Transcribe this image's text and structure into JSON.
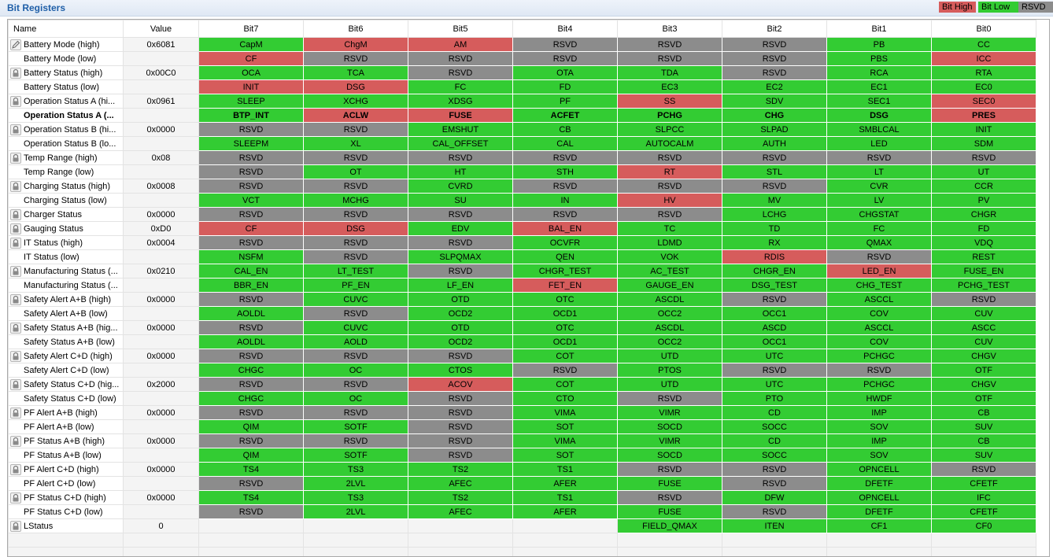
{
  "header": {
    "title": "Bit Registers"
  },
  "legend": {
    "high": "Bit High",
    "low": "Bit Low",
    "rsvd": "RSVD"
  },
  "colors": {
    "high": "#d65c5c",
    "low": "#33cc33",
    "rsvd": "#8c8c8c",
    "title": "#1f5fa8"
  },
  "columns": [
    "Name",
    "Value",
    "Bit7",
    "Bit6",
    "Bit5",
    "Bit4",
    "Bit3",
    "Bit2",
    "Bit1",
    "Bit0"
  ],
  "rows": [
    {
      "name": "Battery Mode (high)",
      "value": "0x6081",
      "icon": "edit-icon",
      "bits": [
        [
          "CapM",
          "lo"
        ],
        [
          "ChgM",
          "hi"
        ],
        [
          "AM",
          "hi"
        ],
        [
          "RSVD",
          "rsvd"
        ],
        [
          "RSVD",
          "rsvd"
        ],
        [
          "RSVD",
          "rsvd"
        ],
        [
          "PB",
          "lo"
        ],
        [
          "CC",
          "lo"
        ]
      ]
    },
    {
      "name": "Battery Mode (low)",
      "value": "",
      "icon": "",
      "bits": [
        [
          "CF",
          "hi"
        ],
        [
          "RSVD",
          "rsvd"
        ],
        [
          "RSVD",
          "rsvd"
        ],
        [
          "RSVD",
          "rsvd"
        ],
        [
          "RSVD",
          "rsvd"
        ],
        [
          "RSVD",
          "rsvd"
        ],
        [
          "PBS",
          "lo"
        ],
        [
          "ICC",
          "hi"
        ]
      ]
    },
    {
      "name": "Battery Status (high)",
      "value": "0x00C0",
      "icon": "lock-icon",
      "bits": [
        [
          "OCA",
          "lo"
        ],
        [
          "TCA",
          "lo"
        ],
        [
          "RSVD",
          "rsvd"
        ],
        [
          "OTA",
          "lo"
        ],
        [
          "TDA",
          "lo"
        ],
        [
          "RSVD",
          "rsvd"
        ],
        [
          "RCA",
          "lo"
        ],
        [
          "RTA",
          "lo"
        ]
      ]
    },
    {
      "name": "Battery Status (low)",
      "value": "",
      "icon": "",
      "bits": [
        [
          "INIT",
          "hi"
        ],
        [
          "DSG",
          "hi"
        ],
        [
          "FC",
          "lo"
        ],
        [
          "FD",
          "lo"
        ],
        [
          "EC3",
          "lo"
        ],
        [
          "EC2",
          "lo"
        ],
        [
          "EC1",
          "lo"
        ],
        [
          "EC0",
          "lo"
        ]
      ]
    },
    {
      "name": "Operation Status A (hi...",
      "value": "0x0961",
      "icon": "lock-icon",
      "bits": [
        [
          "SLEEP",
          "lo"
        ],
        [
          "XCHG",
          "lo"
        ],
        [
          "XDSG",
          "lo"
        ],
        [
          "PF",
          "lo"
        ],
        [
          "SS",
          "hi"
        ],
        [
          "SDV",
          "lo"
        ],
        [
          "SEC1",
          "lo"
        ],
        [
          "SEC0",
          "hi"
        ]
      ]
    },
    {
      "name": "Operation Status A (...",
      "value": "",
      "icon": "",
      "bold": true,
      "bits": [
        [
          "BTP_INT",
          "lo"
        ],
        [
          "ACLW",
          "hi"
        ],
        [
          "FUSE",
          "hi"
        ],
        [
          "ACFET",
          "lo"
        ],
        [
          "PCHG",
          "lo"
        ],
        [
          "CHG",
          "lo"
        ],
        [
          "DSG",
          "lo"
        ],
        [
          "PRES",
          "hi"
        ]
      ]
    },
    {
      "name": "Operation Status B (hi...",
      "value": "0x0000",
      "icon": "lock-icon",
      "bits": [
        [
          "RSVD",
          "rsvd"
        ],
        [
          "RSVD",
          "rsvd"
        ],
        [
          "EMSHUT",
          "lo"
        ],
        [
          "CB",
          "lo"
        ],
        [
          "SLPCC",
          "lo"
        ],
        [
          "SLPAD",
          "lo"
        ],
        [
          "SMBLCAL",
          "lo"
        ],
        [
          "INIT",
          "lo"
        ]
      ]
    },
    {
      "name": "Operation Status B (lo...",
      "value": "",
      "icon": "",
      "bits": [
        [
          "SLEEPM",
          "lo"
        ],
        [
          "XL",
          "lo"
        ],
        [
          "CAL_OFFSET",
          "lo"
        ],
        [
          "CAL",
          "lo"
        ],
        [
          "AUTOCALM",
          "lo"
        ],
        [
          "AUTH",
          "lo"
        ],
        [
          "LED",
          "lo"
        ],
        [
          "SDM",
          "lo"
        ]
      ]
    },
    {
      "name": "Temp Range (high)",
      "value": "0x08",
      "icon": "lock-icon",
      "bits": [
        [
          "RSVD",
          "rsvd"
        ],
        [
          "RSVD",
          "rsvd"
        ],
        [
          "RSVD",
          "rsvd"
        ],
        [
          "RSVD",
          "rsvd"
        ],
        [
          "RSVD",
          "rsvd"
        ],
        [
          "RSVD",
          "rsvd"
        ],
        [
          "RSVD",
          "rsvd"
        ],
        [
          "RSVD",
          "rsvd"
        ]
      ]
    },
    {
      "name": "Temp Range (low)",
      "value": "",
      "icon": "",
      "bits": [
        [
          "RSVD",
          "rsvd"
        ],
        [
          "OT",
          "lo"
        ],
        [
          "HT",
          "lo"
        ],
        [
          "STH",
          "lo"
        ],
        [
          "RT",
          "hi"
        ],
        [
          "STL",
          "lo"
        ],
        [
          "LT",
          "lo"
        ],
        [
          "UT",
          "lo"
        ]
      ]
    },
    {
      "name": "Charging Status (high)",
      "value": "0x0008",
      "icon": "lock-icon",
      "bits": [
        [
          "RSVD",
          "rsvd"
        ],
        [
          "RSVD",
          "rsvd"
        ],
        [
          "CVRD",
          "lo"
        ],
        [
          "RSVD",
          "rsvd"
        ],
        [
          "RSVD",
          "rsvd"
        ],
        [
          "RSVD",
          "rsvd"
        ],
        [
          "CVR",
          "lo"
        ],
        [
          "CCR",
          "lo"
        ]
      ]
    },
    {
      "name": "Charging Status (low)",
      "value": "",
      "icon": "",
      "bits": [
        [
          "VCT",
          "lo"
        ],
        [
          "MCHG",
          "lo"
        ],
        [
          "SU",
          "lo"
        ],
        [
          "IN",
          "lo"
        ],
        [
          "HV",
          "hi"
        ],
        [
          "MV",
          "lo"
        ],
        [
          "LV",
          "lo"
        ],
        [
          "PV",
          "lo"
        ]
      ]
    },
    {
      "name": "Charger Status",
      "value": "0x0000",
      "icon": "lock-icon",
      "bits": [
        [
          "RSVD",
          "rsvd"
        ],
        [
          "RSVD",
          "rsvd"
        ],
        [
          "RSVD",
          "rsvd"
        ],
        [
          "RSVD",
          "rsvd"
        ],
        [
          "RSVD",
          "rsvd"
        ],
        [
          "LCHG",
          "lo"
        ],
        [
          "CHGSTAT",
          "lo"
        ],
        [
          "CHGR",
          "lo"
        ]
      ]
    },
    {
      "name": "Gauging Status",
      "value": "0xD0",
      "icon": "lock-icon",
      "bits": [
        [
          "CF",
          "hi"
        ],
        [
          "DSG",
          "hi"
        ],
        [
          "EDV",
          "lo"
        ],
        [
          "BAL_EN",
          "hi"
        ],
        [
          "TC",
          "lo"
        ],
        [
          "TD",
          "lo"
        ],
        [
          "FC",
          "lo"
        ],
        [
          "FD",
          "lo"
        ]
      ]
    },
    {
      "name": "IT Status (high)",
      "value": "0x0004",
      "icon": "lock-icon",
      "bits": [
        [
          "RSVD",
          "rsvd"
        ],
        [
          "RSVD",
          "rsvd"
        ],
        [
          "RSVD",
          "rsvd"
        ],
        [
          "OCVFR",
          "lo"
        ],
        [
          "LDMD",
          "lo"
        ],
        [
          "RX",
          "lo"
        ],
        [
          "QMAX",
          "lo"
        ],
        [
          "VDQ",
          "lo"
        ]
      ]
    },
    {
      "name": "IT Status (low)",
      "value": "",
      "icon": "",
      "bits": [
        [
          "NSFM",
          "lo"
        ],
        [
          "RSVD",
          "rsvd"
        ],
        [
          "SLPQMAX",
          "lo"
        ],
        [
          "QEN",
          "lo"
        ],
        [
          "VOK",
          "lo"
        ],
        [
          "RDIS",
          "hi"
        ],
        [
          "RSVD",
          "rsvd"
        ],
        [
          "REST",
          "lo"
        ]
      ]
    },
    {
      "name": "Manufacturing Status (...",
      "value": "0x0210",
      "icon": "lock-icon",
      "bits": [
        [
          "CAL_EN",
          "lo"
        ],
        [
          "LT_TEST",
          "lo"
        ],
        [
          "RSVD",
          "rsvd"
        ],
        [
          "CHGR_TEST",
          "lo"
        ],
        [
          "AC_TEST",
          "lo"
        ],
        [
          "CHGR_EN",
          "lo"
        ],
        [
          "LED_EN",
          "hi"
        ],
        [
          "FUSE_EN",
          "lo"
        ]
      ]
    },
    {
      "name": "Manufacturing Status (...",
      "value": "",
      "icon": "",
      "bits": [
        [
          "BBR_EN",
          "lo"
        ],
        [
          "PF_EN",
          "lo"
        ],
        [
          "LF_EN",
          "lo"
        ],
        [
          "FET_EN",
          "hi"
        ],
        [
          "GAUGE_EN",
          "lo"
        ],
        [
          "DSG_TEST",
          "lo"
        ],
        [
          "CHG_TEST",
          "lo"
        ],
        [
          "PCHG_TEST",
          "lo"
        ]
      ]
    },
    {
      "name": "Safety Alert A+B (high)",
      "value": "0x0000",
      "icon": "lock-icon",
      "bits": [
        [
          "RSVD",
          "rsvd"
        ],
        [
          "CUVC",
          "lo"
        ],
        [
          "OTD",
          "lo"
        ],
        [
          "OTC",
          "lo"
        ],
        [
          "ASCDL",
          "lo"
        ],
        [
          "RSVD",
          "rsvd"
        ],
        [
          "ASCCL",
          "lo"
        ],
        [
          "RSVD",
          "rsvd"
        ]
      ]
    },
    {
      "name": "Safety Alert A+B (low)",
      "value": "",
      "icon": "",
      "bits": [
        [
          "AOLDL",
          "lo"
        ],
        [
          "RSVD",
          "rsvd"
        ],
        [
          "OCD2",
          "lo"
        ],
        [
          "OCD1",
          "lo"
        ],
        [
          "OCC2",
          "lo"
        ],
        [
          "OCC1",
          "lo"
        ],
        [
          "COV",
          "lo"
        ],
        [
          "CUV",
          "lo"
        ]
      ]
    },
    {
      "name": "Safety Status A+B (hig...",
      "value": "0x0000",
      "icon": "lock-icon",
      "bits": [
        [
          "RSVD",
          "rsvd"
        ],
        [
          "CUVC",
          "lo"
        ],
        [
          "OTD",
          "lo"
        ],
        [
          "OTC",
          "lo"
        ],
        [
          "ASCDL",
          "lo"
        ],
        [
          "ASCD",
          "lo"
        ],
        [
          "ASCCL",
          "lo"
        ],
        [
          "ASCC",
          "lo"
        ]
      ]
    },
    {
      "name": "Safety Status A+B (low)",
      "value": "",
      "icon": "",
      "bits": [
        [
          "AOLDL",
          "lo"
        ],
        [
          "AOLD",
          "lo"
        ],
        [
          "OCD2",
          "lo"
        ],
        [
          "OCD1",
          "lo"
        ],
        [
          "OCC2",
          "lo"
        ],
        [
          "OCC1",
          "lo"
        ],
        [
          "COV",
          "lo"
        ],
        [
          "CUV",
          "lo"
        ]
      ]
    },
    {
      "name": "Safety Alert C+D (high)",
      "value": "0x0000",
      "icon": "lock-icon",
      "bits": [
        [
          "RSVD",
          "rsvd"
        ],
        [
          "RSVD",
          "rsvd"
        ],
        [
          "RSVD",
          "rsvd"
        ],
        [
          "COT",
          "lo"
        ],
        [
          "UTD",
          "lo"
        ],
        [
          "UTC",
          "lo"
        ],
        [
          "PCHGC",
          "lo"
        ],
        [
          "CHGV",
          "lo"
        ]
      ]
    },
    {
      "name": "Safety Alert C+D (low)",
      "value": "",
      "icon": "",
      "bits": [
        [
          "CHGC",
          "lo"
        ],
        [
          "OC",
          "lo"
        ],
        [
          "CTOS",
          "lo"
        ],
        [
          "RSVD",
          "rsvd"
        ],
        [
          "PTOS",
          "lo"
        ],
        [
          "RSVD",
          "rsvd"
        ],
        [
          "RSVD",
          "rsvd"
        ],
        [
          "OTF",
          "lo"
        ]
      ]
    },
    {
      "name": "Safety Status C+D (hig...",
      "value": "0x2000",
      "icon": "lock-icon",
      "bits": [
        [
          "RSVD",
          "rsvd"
        ],
        [
          "RSVD",
          "rsvd"
        ],
        [
          "ACOV",
          "hi"
        ],
        [
          "COT",
          "lo"
        ],
        [
          "UTD",
          "lo"
        ],
        [
          "UTC",
          "lo"
        ],
        [
          "PCHGC",
          "lo"
        ],
        [
          "CHGV",
          "lo"
        ]
      ]
    },
    {
      "name": "Safety Status C+D (low)",
      "value": "",
      "icon": "",
      "bits": [
        [
          "CHGC",
          "lo"
        ],
        [
          "OC",
          "lo"
        ],
        [
          "RSVD",
          "rsvd"
        ],
        [
          "CTO",
          "lo"
        ],
        [
          "RSVD",
          "rsvd"
        ],
        [
          "PTO",
          "lo"
        ],
        [
          "HWDF",
          "lo"
        ],
        [
          "OTF",
          "lo"
        ]
      ]
    },
    {
      "name": "PF Alert A+B (high)",
      "value": "0x0000",
      "icon": "lock-icon",
      "bits": [
        [
          "RSVD",
          "rsvd"
        ],
        [
          "RSVD",
          "rsvd"
        ],
        [
          "RSVD",
          "rsvd"
        ],
        [
          "VIMA",
          "lo"
        ],
        [
          "VIMR",
          "lo"
        ],
        [
          "CD",
          "lo"
        ],
        [
          "IMP",
          "lo"
        ],
        [
          "CB",
          "lo"
        ]
      ]
    },
    {
      "name": "PF Alert A+B (low)",
      "value": "",
      "icon": "",
      "bits": [
        [
          "QIM",
          "lo"
        ],
        [
          "SOTF",
          "lo"
        ],
        [
          "RSVD",
          "rsvd"
        ],
        [
          "SOT",
          "lo"
        ],
        [
          "SOCD",
          "lo"
        ],
        [
          "SOCC",
          "lo"
        ],
        [
          "SOV",
          "lo"
        ],
        [
          "SUV",
          "lo"
        ]
      ]
    },
    {
      "name": "PF Status A+B (high)",
      "value": "0x0000",
      "icon": "lock-icon",
      "bits": [
        [
          "RSVD",
          "rsvd"
        ],
        [
          "RSVD",
          "rsvd"
        ],
        [
          "RSVD",
          "rsvd"
        ],
        [
          "VIMA",
          "lo"
        ],
        [
          "VIMR",
          "lo"
        ],
        [
          "CD",
          "lo"
        ],
        [
          "IMP",
          "lo"
        ],
        [
          "CB",
          "lo"
        ]
      ]
    },
    {
      "name": "PF Status A+B (low)",
      "value": "",
      "icon": "",
      "bits": [
        [
          "QIM",
          "lo"
        ],
        [
          "SOTF",
          "lo"
        ],
        [
          "RSVD",
          "rsvd"
        ],
        [
          "SOT",
          "lo"
        ],
        [
          "SOCD",
          "lo"
        ],
        [
          "SOCC",
          "lo"
        ],
        [
          "SOV",
          "lo"
        ],
        [
          "SUV",
          "lo"
        ]
      ]
    },
    {
      "name": "PF Alert C+D (high)",
      "value": "0x0000",
      "icon": "lock-icon",
      "bits": [
        [
          "TS4",
          "lo"
        ],
        [
          "TS3",
          "lo"
        ],
        [
          "TS2",
          "lo"
        ],
        [
          "TS1",
          "lo"
        ],
        [
          "RSVD",
          "rsvd"
        ],
        [
          "RSVD",
          "rsvd"
        ],
        [
          "OPNCELL",
          "lo"
        ],
        [
          "RSVD",
          "rsvd"
        ]
      ]
    },
    {
      "name": "PF Alert C+D (low)",
      "value": "",
      "icon": "",
      "bits": [
        [
          "RSVD",
          "rsvd"
        ],
        [
          "2LVL",
          "lo"
        ],
        [
          "AFEC",
          "lo"
        ],
        [
          "AFER",
          "lo"
        ],
        [
          "FUSE",
          "lo"
        ],
        [
          "RSVD",
          "rsvd"
        ],
        [
          "DFETF",
          "lo"
        ],
        [
          "CFETF",
          "lo"
        ]
      ]
    },
    {
      "name": "PF Status C+D (high)",
      "value": "0x0000",
      "icon": "lock-icon",
      "bits": [
        [
          "TS4",
          "lo"
        ],
        [
          "TS3",
          "lo"
        ],
        [
          "TS2",
          "lo"
        ],
        [
          "TS1",
          "lo"
        ],
        [
          "RSVD",
          "rsvd"
        ],
        [
          "DFW",
          "lo"
        ],
        [
          "OPNCELL",
          "lo"
        ],
        [
          "IFC",
          "lo"
        ]
      ]
    },
    {
      "name": "PF Status C+D (low)",
      "value": "",
      "icon": "",
      "bits": [
        [
          "RSVD",
          "rsvd"
        ],
        [
          "2LVL",
          "lo"
        ],
        [
          "AFEC",
          "lo"
        ],
        [
          "AFER",
          "lo"
        ],
        [
          "FUSE",
          "lo"
        ],
        [
          "RSVD",
          "rsvd"
        ],
        [
          "DFETF",
          "lo"
        ],
        [
          "CFETF",
          "lo"
        ]
      ]
    },
    {
      "name": "LStatus",
      "value": "0",
      "icon": "lock-icon",
      "bits": [
        [
          "",
          "empty"
        ],
        [
          "",
          "empty"
        ],
        [
          "",
          "empty"
        ],
        [
          "",
          "empty"
        ],
        [
          "FIELD_QMAX",
          "lo"
        ],
        [
          "ITEN",
          "lo"
        ],
        [
          "CF1",
          "lo"
        ],
        [
          "CF0",
          "lo"
        ]
      ]
    }
  ]
}
